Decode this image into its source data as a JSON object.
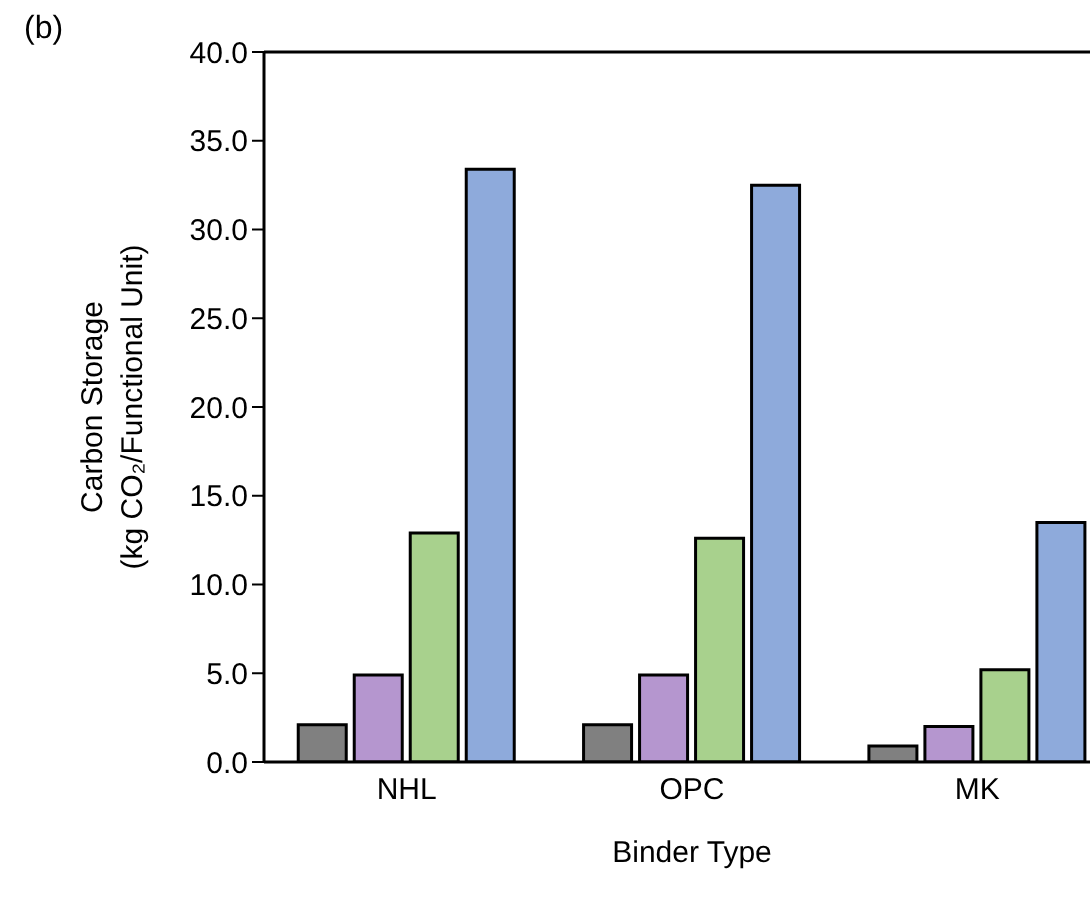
{
  "chart_data": {
    "type": "bar",
    "annotations": [
      "(b)"
    ],
    "xlabel": "Binder Type",
    "ylabel": "Carbon Storage\n(kg CO₂/Functional Unit)",
    "categories": [
      "NHL",
      "OPC",
      "MK"
    ],
    "series": [
      {
        "color": "#808080",
        "values": [
          2.1,
          2.1,
          0.9
        ]
      },
      {
        "color": "#b596cf",
        "values": [
          4.9,
          4.9,
          2.0
        ]
      },
      {
        "color": "#a8d18d",
        "values": [
          12.9,
          12.6,
          5.2
        ]
      },
      {
        "color": "#8eaadb",
        "values": [
          33.4,
          32.5,
          13.5
        ]
      }
    ],
    "ylim": [
      0,
      40
    ],
    "yticks": [
      {
        "value": 0,
        "label": "0.0"
      },
      {
        "value": 5,
        "label": "5.0"
      },
      {
        "value": 10,
        "label": "10.0"
      },
      {
        "value": 15,
        "label": "15.0"
      },
      {
        "value": 20,
        "label": "20.0"
      },
      {
        "value": 25,
        "label": "25.0"
      },
      {
        "value": 30,
        "label": "30.0"
      },
      {
        "value": 35,
        "label": "35.0"
      },
      {
        "value": 40,
        "label": "40.0"
      }
    ],
    "grid": false,
    "legend": false
  }
}
